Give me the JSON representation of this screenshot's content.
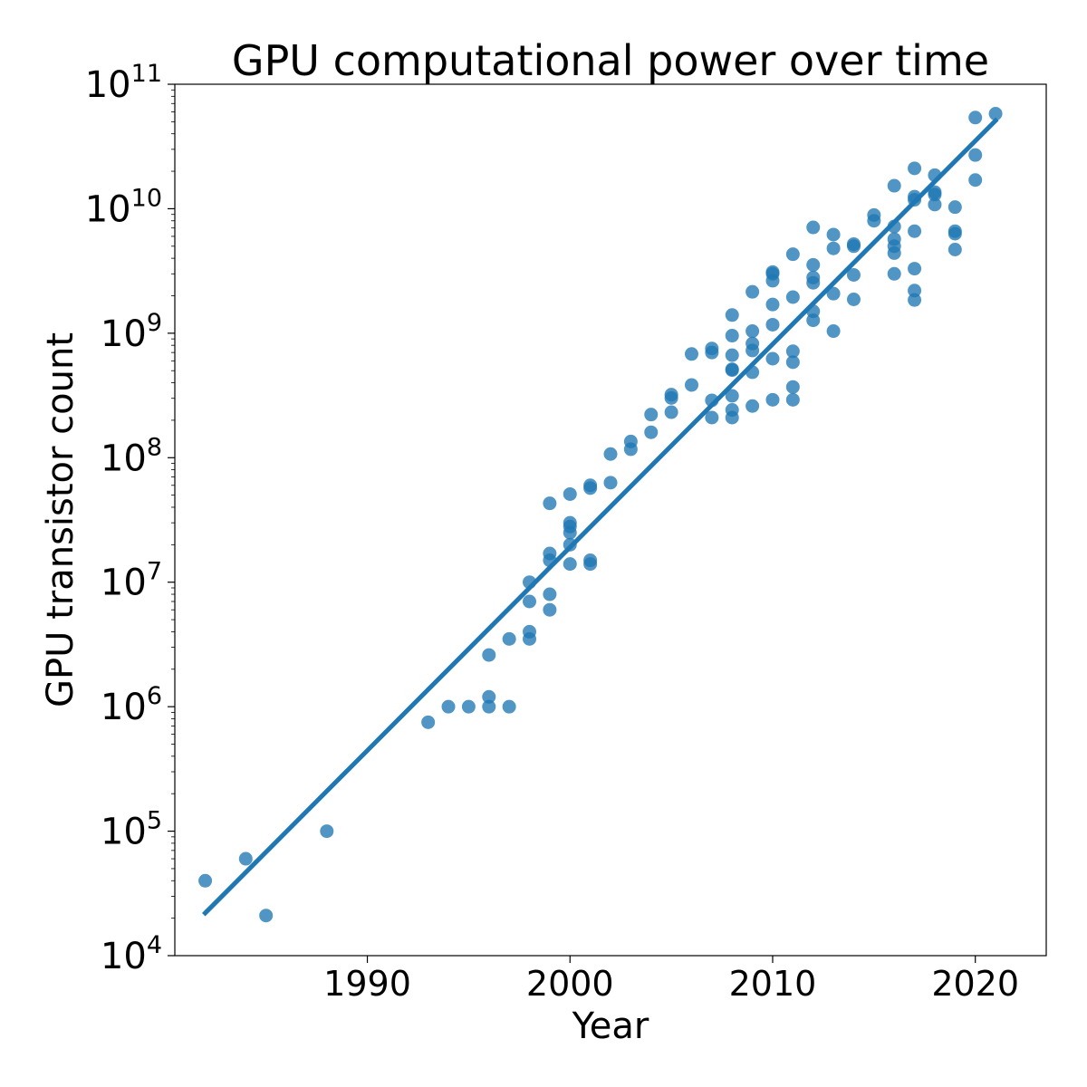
{
  "chart_data": {
    "type": "scatter",
    "title": "GPU computational power over time",
    "xlabel": "Year",
    "ylabel": "GPU transistor count",
    "xlim": [
      1980.5,
      2023.5
    ],
    "ylim": [
      10000,
      100000000000
    ],
    "yscale": "log",
    "grid": false,
    "x_ticks": [
      1990,
      2000,
      2010,
      2020
    ],
    "y_ticks": [
      {
        "value": 10000,
        "base": "10",
        "exp": "4"
      },
      {
        "value": 100000,
        "base": "10",
        "exp": "5"
      },
      {
        "value": 1000000,
        "base": "10",
        "exp": "6"
      },
      {
        "value": 10000000,
        "base": "10",
        "exp": "7"
      },
      {
        "value": 100000000,
        "base": "10",
        "exp": "8"
      },
      {
        "value": 1000000000,
        "base": "10",
        "exp": "9"
      },
      {
        "value": 10000000000,
        "base": "10",
        "exp": "10"
      },
      {
        "value": 100000000000,
        "base": "10",
        "exp": "11"
      }
    ],
    "colors": {
      "points": "#1f77b4",
      "fit_line": "#1f77b4"
    },
    "points": [
      [
        1982,
        40000
      ],
      [
        1984,
        60000
      ],
      [
        1985,
        21000
      ],
      [
        1988,
        100000
      ],
      [
        1993,
        750000
      ],
      [
        1994,
        1000000
      ],
      [
        1995,
        1000000
      ],
      [
        1996,
        1000000
      ],
      [
        1996,
        1200000
      ],
      [
        1996,
        2600000
      ],
      [
        1997,
        1000000
      ],
      [
        1997,
        3500000
      ],
      [
        1998,
        3500000
      ],
      [
        1998,
        4000000
      ],
      [
        1998,
        7000000
      ],
      [
        1998,
        10000000
      ],
      [
        1999,
        6000000
      ],
      [
        1999,
        8000000
      ],
      [
        1999,
        15000000
      ],
      [
        1999,
        17000000
      ],
      [
        1999,
        43000000
      ],
      [
        2000,
        14000000
      ],
      [
        2000,
        20000000
      ],
      [
        2000,
        25000000
      ],
      [
        2000,
        28000000
      ],
      [
        2000,
        30000000
      ],
      [
        2000,
        51000000
      ],
      [
        2001,
        14000000
      ],
      [
        2001,
        15000000
      ],
      [
        2001,
        57000000
      ],
      [
        2001,
        60000000
      ],
      [
        2002,
        63000000
      ],
      [
        2002,
        107000000
      ],
      [
        2003,
        117000000
      ],
      [
        2003,
        135000000
      ],
      [
        2004,
        160000000
      ],
      [
        2004,
        222000000
      ],
      [
        2005,
        232000000
      ],
      [
        2005,
        302000000
      ],
      [
        2005,
        321000000
      ],
      [
        2006,
        384000000
      ],
      [
        2006,
        681000000
      ],
      [
        2007,
        210000000
      ],
      [
        2007,
        289000000
      ],
      [
        2007,
        700000000
      ],
      [
        2007,
        754000000
      ],
      [
        2008,
        210000000
      ],
      [
        2008,
        242000000
      ],
      [
        2008,
        314000000
      ],
      [
        2008,
        505000000
      ],
      [
        2008,
        514000000
      ],
      [
        2008,
        666000000
      ],
      [
        2008,
        956000000
      ],
      [
        2008,
        1400000000
      ],
      [
        2009,
        260000000
      ],
      [
        2009,
        486000000
      ],
      [
        2009,
        727000000
      ],
      [
        2009,
        826000000
      ],
      [
        2009,
        1040000000
      ],
      [
        2009,
        2150000000
      ],
      [
        2010,
        292000000
      ],
      [
        2010,
        624000000
      ],
      [
        2010,
        1170000000
      ],
      [
        2010,
        1700000000
      ],
      [
        2010,
        2640000000
      ],
      [
        2010,
        3000000000
      ],
      [
        2010,
        3100000000
      ],
      [
        2011,
        292000000
      ],
      [
        2011,
        370000000
      ],
      [
        2011,
        585000000
      ],
      [
        2011,
        716000000
      ],
      [
        2011,
        1950000000
      ],
      [
        2011,
        4310000000
      ],
      [
        2012,
        1270000000
      ],
      [
        2012,
        1500000000
      ],
      [
        2012,
        2540000000
      ],
      [
        2012,
        2800000000
      ],
      [
        2012,
        3540000000
      ],
      [
        2012,
        7080000000
      ],
      [
        2013,
        1040000000
      ],
      [
        2013,
        2080000000
      ],
      [
        2013,
        4800000000
      ],
      [
        2013,
        6200000000
      ],
      [
        2014,
        1870000000
      ],
      [
        2014,
        2940000000
      ],
      [
        2014,
        5000000000
      ],
      [
        2014,
        5200000000
      ],
      [
        2015,
        8000000000
      ],
      [
        2015,
        8900000000
      ],
      [
        2016,
        3000000000
      ],
      [
        2016,
        4400000000
      ],
      [
        2016,
        5000000000
      ],
      [
        2016,
        5700000000
      ],
      [
        2016,
        7200000000
      ],
      [
        2016,
        15300000000
      ],
      [
        2017,
        1850000000
      ],
      [
        2017,
        2200000000
      ],
      [
        2017,
        3300000000
      ],
      [
        2017,
        6600000000
      ],
      [
        2017,
        11800000000
      ],
      [
        2017,
        12500000000
      ],
      [
        2017,
        21100000000
      ],
      [
        2018,
        10800000000
      ],
      [
        2018,
        13000000000
      ],
      [
        2018,
        13600000000
      ],
      [
        2018,
        18600000000
      ],
      [
        2019,
        4700000000
      ],
      [
        2019,
        6300000000
      ],
      [
        2019,
        6600000000
      ],
      [
        2019,
        10300000000
      ],
      [
        2020,
        17000000000
      ],
      [
        2020,
        27000000000
      ],
      [
        2020,
        54000000000
      ],
      [
        2021,
        58000000000
      ]
    ],
    "fit_line": [
      [
        1982,
        22000
      ],
      [
        2021,
        51000000000
      ]
    ]
  }
}
